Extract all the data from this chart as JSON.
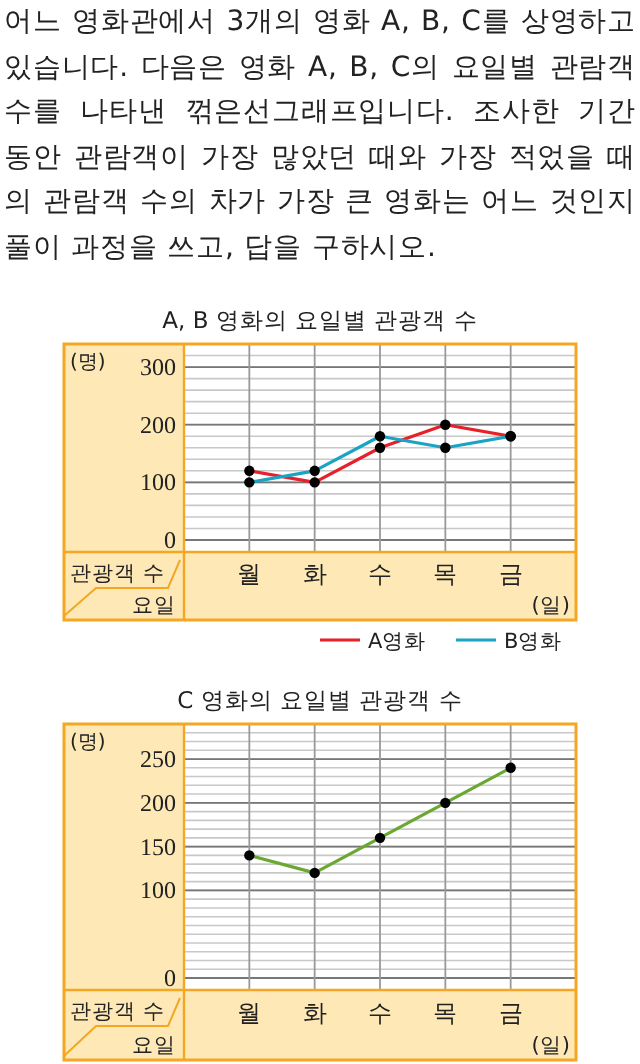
{
  "chart_data": [
    {
      "type": "other",
      "annotations": [
        "어느 영화관에서 3개의 영화 A, B, C를 상영하고 있습니다. 다음은 영화 A, B, C의 요일별 관람객 수를 나타낸 꺾은선그래프입니다. 조사한 기간 동안 관람객이 가장 많았던 때와 가장 적었을 때의 관람객 수의 차가 가장 큰 영화는 어느 것인지 풀이 과정을 쓰고, 답을 구하시오."
      ]
    },
    {
      "type": "line",
      "title": "A, B 영화의 요일별 관광객 수",
      "xlabel": "(일)",
      "ylabel": "(명)",
      "annotations": [
        "관광객 수",
        "요일"
      ],
      "categories": [
        "월",
        "화",
        "수",
        "목",
        "금"
      ],
      "series": [
        {
          "name": "A영화",
          "color": "#e8202a",
          "values": [
            120,
            100,
            160,
            200,
            180
          ]
        },
        {
          "name": "B영화",
          "color": "#1ba3c6",
          "values": [
            100,
            120,
            180,
            160,
            180
          ]
        }
      ],
      "ylim": [
        0,
        340
      ],
      "yticks": [
        0,
        100,
        200,
        300
      ],
      "grid": true,
      "legend": "bottom",
      "marker": "circle"
    },
    {
      "type": "line",
      "title": "C 영화의 요일별 관광객 수",
      "xlabel": "(일)",
      "ylabel": "(명)",
      "annotations": [
        "관광객 수",
        "요일"
      ],
      "categories": [
        "월",
        "화",
        "수",
        "목",
        "금"
      ],
      "series": [
        {
          "color": "#6aa832",
          "values": [
            140,
            120,
            160,
            200,
            240
          ]
        }
      ],
      "ylim": [
        0,
        290
      ],
      "yticks": [
        0,
        100,
        150,
        200,
        250
      ],
      "grid": true,
      "marker": "circle"
    }
  ]
}
